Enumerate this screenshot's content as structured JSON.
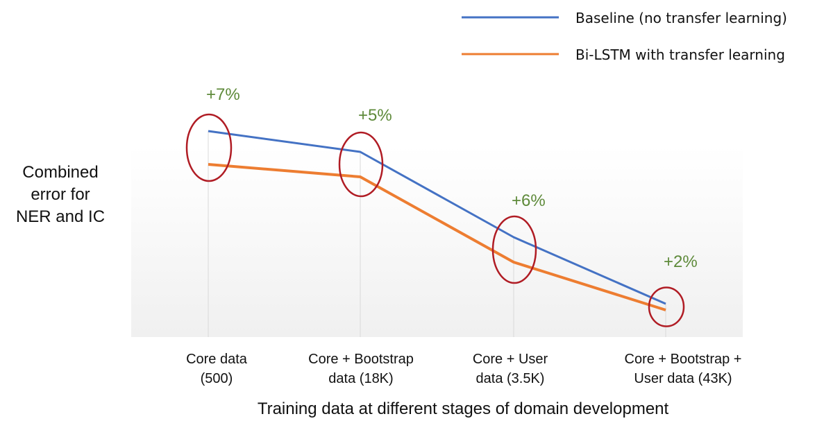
{
  "chart_data": {
    "type": "line",
    "title": "",
    "ylabel_lines": [
      "Combined",
      "error for",
      "NER and IC"
    ],
    "xlabel": "Training data at different stages of domain development",
    "categories": [
      [
        "Core data",
        "(500)"
      ],
      [
        "Core + Bootstrap",
        "data (18K)"
      ],
      [
        "Core + User",
        "data (3.5K)"
      ],
      [
        "Core + Bootstrap +",
        "User data (43K)"
      ]
    ],
    "ylim": [
      0,
      112
    ],
    "y_ticks_shown": false,
    "grid": "vertical",
    "legend_position": "top-right",
    "series": [
      {
        "name": "Baseline (no transfer learning)",
        "color": "#4472c4",
        "values": [
          99,
          89,
          48,
          16
        ]
      },
      {
        "name": "Bi-LSTM with transfer learning",
        "color": "#ed7d31",
        "values": [
          83,
          77,
          36,
          13
        ]
      }
    ],
    "annotations": [
      {
        "text": "+7%",
        "category_index": 0
      },
      {
        "text": "+5%",
        "category_index": 1
      },
      {
        "text": "+6%",
        "category_index": 2
      },
      {
        "text": "+2%",
        "category_index": 3
      }
    ],
    "annotation_color": "#5e8a3a",
    "highlight_color": "#b01c24"
  }
}
